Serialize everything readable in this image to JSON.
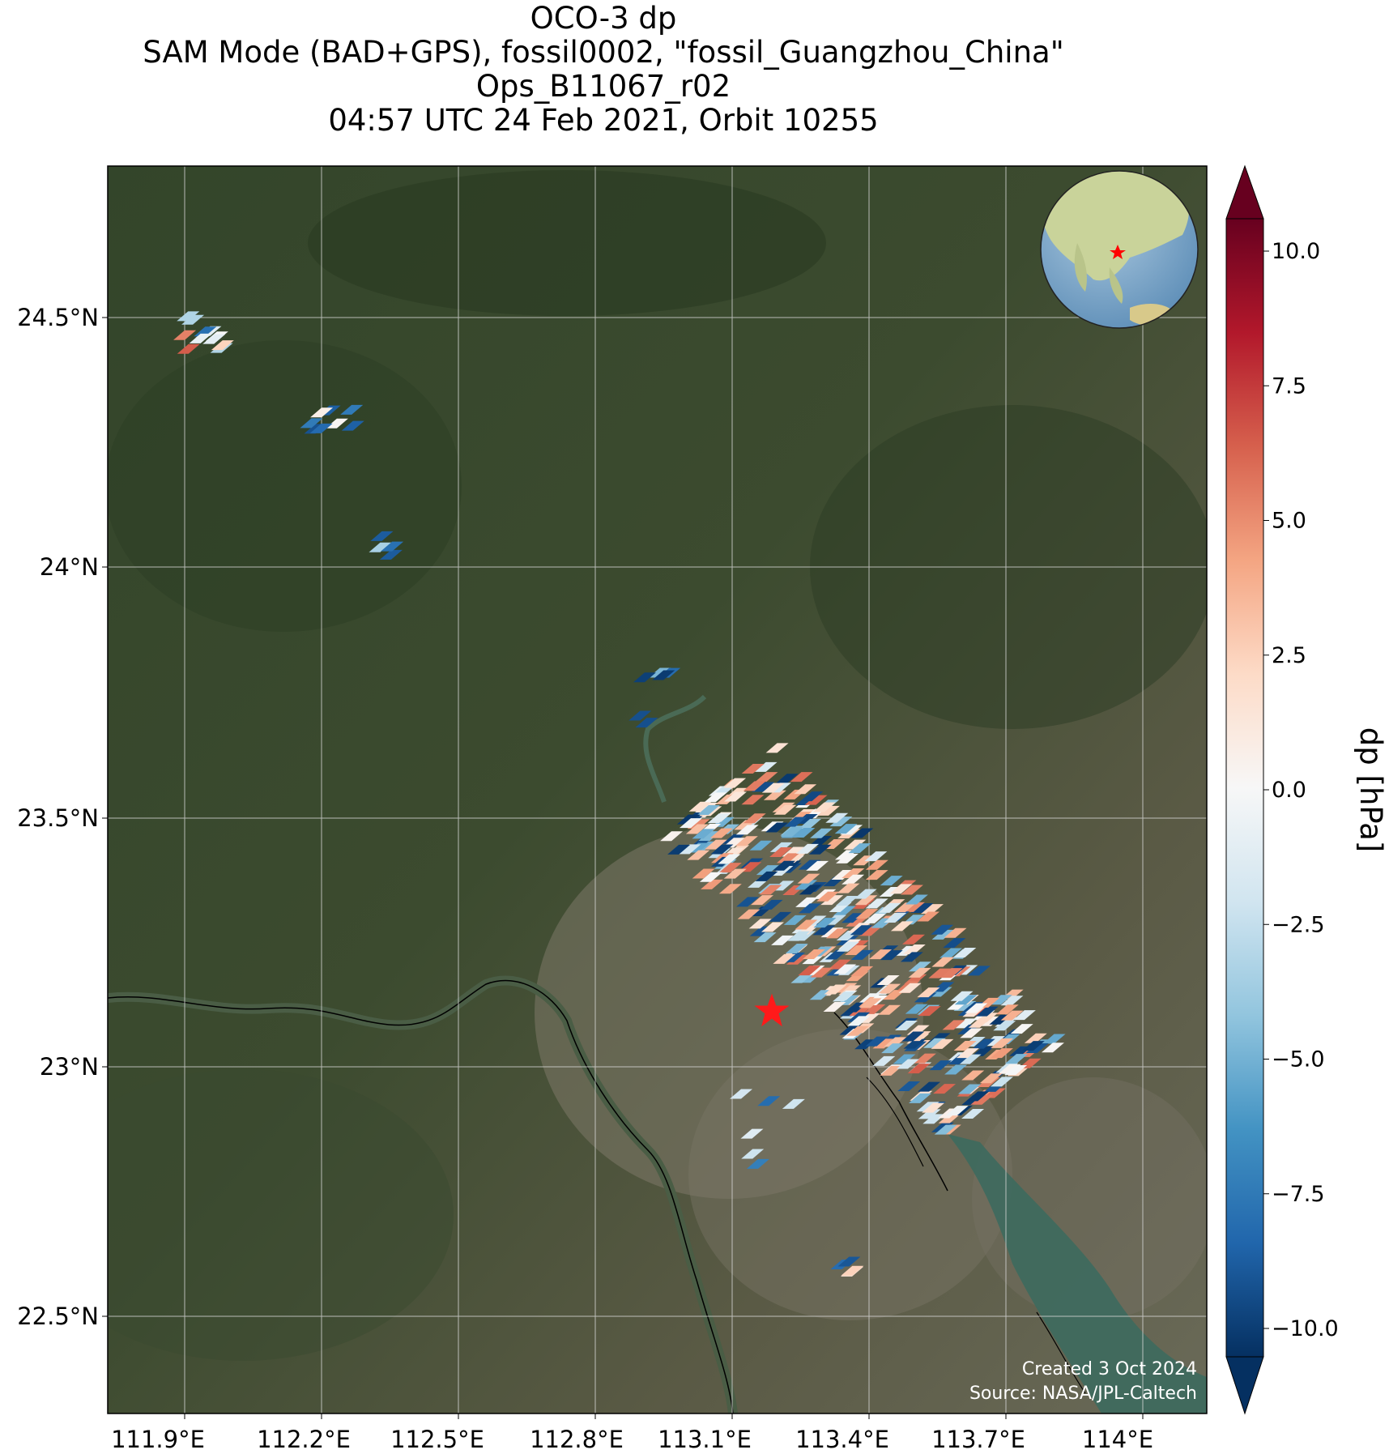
{
  "title": {
    "lines": [
      "OCO-3 dp",
      "SAM Mode (BAD+GPS), fossil0002, \"fossil_Guangzhou_China\"",
      "Ops_B11067_r02",
      "04:57 UTC 24 Feb 2021, Orbit 10255"
    ]
  },
  "map": {
    "x_ticks": [
      "111.9°E",
      "112.2°E",
      "112.5°E",
      "112.8°E",
      "113.1°E",
      "113.4°E",
      "113.7°E",
      "114°E"
    ],
    "x_tick_values": [
      111.9,
      112.2,
      112.5,
      112.8,
      113.1,
      113.4,
      113.7,
      114.0
    ],
    "y_ticks": [
      "24.5°N",
      "24°N",
      "23.5°N",
      "23°N",
      "22.5°N"
    ],
    "y_tick_values": [
      24.5,
      24.0,
      23.5,
      23.0,
      22.5
    ],
    "lon_range": [
      111.9,
      114.3
    ],
    "lat_range": [
      22.3,
      24.8
    ],
    "target_marker": {
      "lon": 113.26,
      "lat": 23.11,
      "color": "#ff0000",
      "icon": "star-icon"
    },
    "basemap": "satellite imagery (forested hills, Pearl River delta, urban Guangzhou)",
    "inset_globe": {
      "center": "Asia",
      "marker_color": "#ff0000"
    },
    "credits": [
      "Created 3 Oct 2024",
      "Source: NASA/JPL-Caltech"
    ]
  },
  "colorbar": {
    "label": "dp [hPa]",
    "ticks": [
      "10.0",
      "7.5",
      "5.0",
      "2.5",
      "0.0",
      "−2.5",
      "−5.0",
      "−7.5",
      "−10.0"
    ],
    "tick_values": [
      10,
      7.5,
      5,
      2.5,
      0,
      -2.5,
      -5,
      -7.5,
      -10
    ],
    "range": [
      -11,
      11
    ],
    "colormap": "RdBu_r",
    "colors": [
      "#053061",
      "#2166ac",
      "#4393c3",
      "#92c5de",
      "#d1e5f0",
      "#f7f7f7",
      "#fddbc7",
      "#f4a582",
      "#d6604d",
      "#b2182b",
      "#67001f"
    ]
  },
  "chart_data": {
    "type": "scatter",
    "title": "OCO-3 dp",
    "xlabel": "",
    "ylabel": "",
    "xlim": [
      111.9,
      114.3
    ],
    "ylim": [
      22.3,
      24.8
    ],
    "value_label": "dp [hPa]",
    "clusters": [
      {
        "lon_range": [
          112.05,
          112.2
        ],
        "lat_range": [
          24.43,
          24.5
        ],
        "values": [
          -1.5,
          -0.5,
          -3.0,
          2.5,
          -8.0,
          6.0
        ]
      },
      {
        "lon_range": [
          112.34,
          112.44
        ],
        "lat_range": [
          24.26,
          24.32
        ],
        "values": [
          -10.0,
          -9.0,
          -8.0,
          0.0
        ]
      },
      {
        "lon_range": [
          112.48,
          112.55
        ],
        "lat_range": [
          24.02,
          24.06
        ],
        "values": [
          -9.0,
          -4.0
        ]
      },
      {
        "lon_range": [
          113.06,
          113.16
        ],
        "lat_range": [
          23.68,
          23.8
        ],
        "values": [
          -9.0,
          -5.0,
          -10.0
        ]
      },
      {
        "lon_range": [
          113.16,
          113.9
        ],
        "lat_range": [
          22.9,
          23.6
        ],
        "values": [
          -10.0,
          -5.0,
          -2.0,
          0.0,
          2.0,
          4.0,
          6.0
        ]
      },
      {
        "lon_range": [
          113.2,
          113.4
        ],
        "lat_range": [
          22.8,
          22.97
        ],
        "values": [
          -8.0,
          -5.0,
          -2.0
        ]
      },
      {
        "lon_range": [
          113.5,
          113.55
        ],
        "lat_range": [
          22.58,
          22.61
        ],
        "values": [
          -9.0,
          2.0
        ]
      }
    ]
  }
}
